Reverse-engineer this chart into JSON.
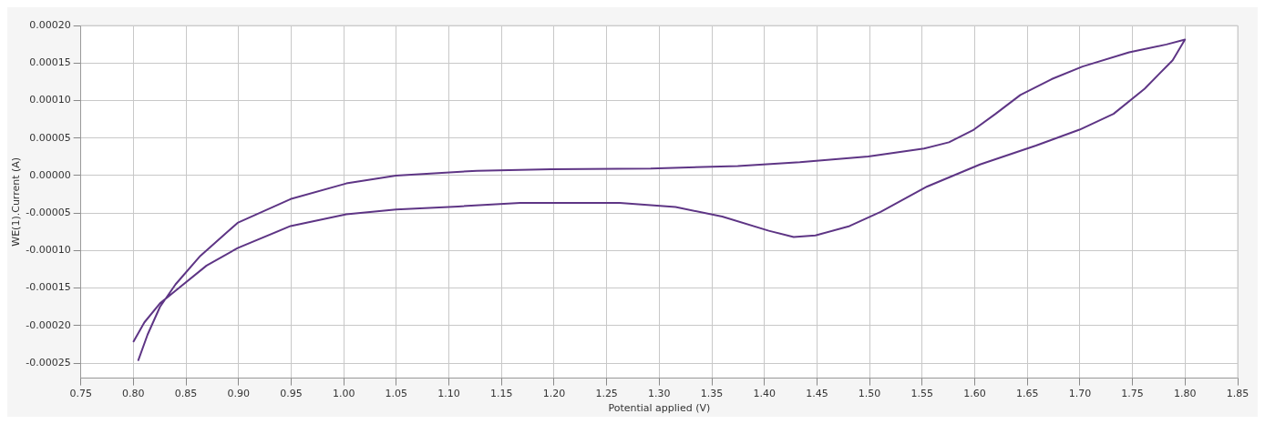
{
  "chart_data": {
    "type": "line",
    "xlabel": "Potential applied (V)",
    "ylabel": "WE(1).Current (A)",
    "x": [
      0.8047,
      0.8135,
      0.8253,
      0.8401,
      0.8637,
      0.8991,
      0.9494,
      1.0025,
      1.0497,
      1.1266,
      1.1974,
      1.2919,
      1.3747,
      1.4337,
      1.4987,
      1.5518,
      1.5755,
      1.5991,
      1.6198,
      1.6434,
      1.673,
      1.7025,
      1.7468,
      1.7822,
      1.7999,
      1.7882,
      1.7616,
      1.732,
      1.6996,
      1.6582,
      1.605,
      1.5548,
      1.5105,
      1.481,
      1.4485,
      1.4278,
      1.4042,
      1.3599,
      1.3155,
      1.2624,
      1.1679,
      1.1088,
      1.0497,
      1.0025,
      0.9494,
      0.8991,
      0.8696,
      0.8401,
      0.8253,
      0.8105,
      0.8002
    ],
    "series": [
      {
        "color": "#5e3585",
        "values": [
          -0.000246,
          -0.000212,
          -0.000175,
          -0.000145,
          -0.000107,
          -6.3e-05,
          -3.14e-05,
          -1.05e-05,
          0,
          6.4e-06,
          8.5e-06,
          9.3e-06,
          1.28e-05,
          1.78e-05,
          2.54e-05,
          3.59e-05,
          4.43e-05,
          6.11e-05,
          8.22e-05,
          0.0001074,
          0.0001284,
          0.0001453,
          0.0001643,
          0.0001747,
          0.0001811,
          0.0001537,
          0.0001158,
          8.22e-05,
          6.11e-05,
          4e-05,
          1.48e-05,
          -1.46e-05,
          -4.84e-05,
          -6.73e-05,
          -7.99e-05,
          -8.2e-05,
          -7.36e-05,
          -5.47e-05,
          -4.2e-05,
          -3.65e-05,
          -3.65e-05,
          -4.12e-05,
          -4.53e-05,
          -5.16e-05,
          -6.73e-05,
          -9.67e-05,
          -0.00012,
          -0.0001535,
          -0.0001703,
          -0.0001956,
          -0.000221
        ]
      }
    ],
    "xlim": [
      0.75,
      1.85
    ],
    "xticks": [
      {
        "value": 0.75,
        "label": "0.75"
      },
      {
        "value": 0.8,
        "label": "0.80"
      },
      {
        "value": 0.85,
        "label": "0.85"
      },
      {
        "value": 0.9,
        "label": "0.90"
      },
      {
        "value": 0.95,
        "label": "0.95"
      },
      {
        "value": 1.0,
        "label": "1.00"
      },
      {
        "value": 1.05,
        "label": "1.05"
      },
      {
        "value": 1.1,
        "label": "1.10"
      },
      {
        "value": 1.15,
        "label": "1.15"
      },
      {
        "value": 1.2,
        "label": "1.20"
      },
      {
        "value": 1.25,
        "label": "1.25"
      },
      {
        "value": 1.3,
        "label": "1.30"
      },
      {
        "value": 1.35,
        "label": "1.35"
      },
      {
        "value": 1.4,
        "label": "1.40"
      },
      {
        "value": 1.45,
        "label": "1.45"
      },
      {
        "value": 1.5,
        "label": "1.50"
      },
      {
        "value": 1.55,
        "label": "1.55"
      },
      {
        "value": 1.6,
        "label": "1.60"
      },
      {
        "value": 1.65,
        "label": "1.65"
      },
      {
        "value": 1.7,
        "label": "1.70"
      },
      {
        "value": 1.75,
        "label": "1.75"
      },
      {
        "value": 1.8,
        "label": "1.80"
      },
      {
        "value": 1.85,
        "label": "1.85"
      }
    ],
    "ylim": [
      -0.00027,
      0.0002
    ],
    "yticks": [
      {
        "value": -0.00025,
        "label": "-0.00025"
      },
      {
        "value": -0.0002,
        "label": "-0.00020"
      },
      {
        "value": -0.00015,
        "label": "-0.00015"
      },
      {
        "value": -0.0001,
        "label": "-0.00010"
      },
      {
        "value": -5e-05,
        "label": "-0.00005"
      },
      {
        "value": 0,
        "label": "0.00000"
      },
      {
        "value": 5e-05,
        "label": "0.00005"
      },
      {
        "value": 0.0001,
        "label": "0.00010"
      },
      {
        "value": 0.00015,
        "label": "0.00015"
      },
      {
        "value": 0.0002,
        "label": "0.00020"
      }
    ],
    "grid": true,
    "legend": false,
    "marker": "none",
    "line_style": "solid"
  }
}
